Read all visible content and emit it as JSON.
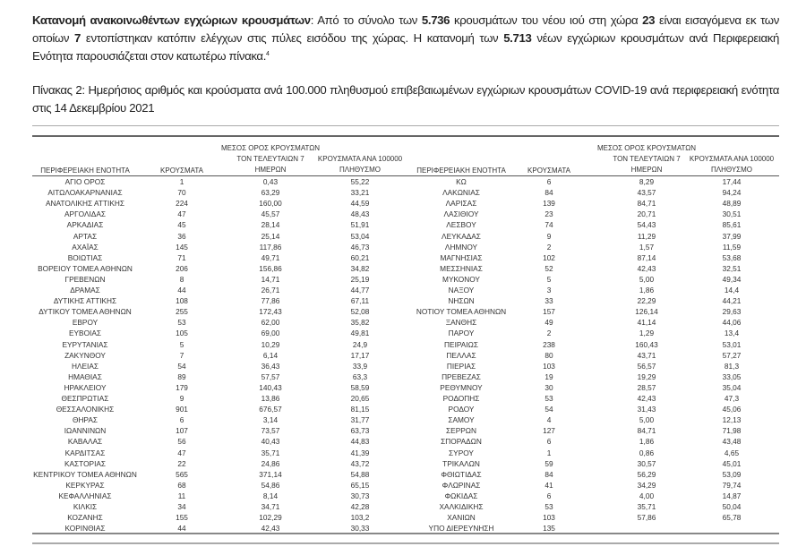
{
  "intro": {
    "bold_lead": "Κατανομή ανακοινωθέντων εγχώριων κρουσμάτων",
    "t1": ": Από το σύνολο των ",
    "total": "5.736",
    "t2": " κρουσμάτων του νέου ιού στη χώρα ",
    "imported": "23",
    "t3": " είναι εισαγόμενα εκ των οποίων ",
    "at_gates": "7",
    "t4": " εντοπίστηκαν κατόπιν ελέγχων στις πύλες εισόδου της χώρας. Η κατανομή των ",
    "domestic": "5.713",
    "t5": " νέων εγχώριων κρουσμάτων ανά Περιφερειακή Ενότητα παρουσιάζεται στον κατωτέρω πίνακα.",
    "footnote": "4"
  },
  "caption": "Πίνακας 2:  Ημερήσιος αριθμός και κρούσματα ανά 100.000 πληθυσμού επιβεβαιωμένων εγχώριων κρουσμάτων COVID-19 ανά περιφερειακή ενότητα στις 14 Δεκεμβρίου 2021",
  "table": {
    "headers": {
      "region": "ΠΕΡΙΦΕΡΕΙΑΚΗ ΕΝΟΤΗΤΑ",
      "cases": "ΚΡΟΥΣΜΑΤΑ",
      "mean_l1": "ΜΕΣΟΣ ΟΡΟΣ ΚΡΟΥΣΜΑΤΩΝ",
      "mean_l2": "ΤΟΝ ΤΕΛΕΥΤΑΙΩΝ 7",
      "mean_l3": "ΗΜΕΡΩΝ",
      "per100k_l1": "ΚΡΟΥΣΜΑΤΑ ΑΝΑ 100000",
      "per100k_l2": "ΠΛΗΘΥΣΜΟ"
    },
    "left": [
      [
        "ΑΓΙΟ ΟΡΟΣ",
        "1",
        "0,43",
        "55,22"
      ],
      [
        "ΑΙΤΩΛΟΑΚΑΡΝΑΝΙΑΣ",
        "70",
        "63,29",
        "33,21"
      ],
      [
        "ΑΝΑΤΟΛΙΚΗΣ ΑΤΤΙΚΗΣ",
        "224",
        "160,00",
        "44,59"
      ],
      [
        "ΑΡΓΟΛΙΔΑΣ",
        "47",
        "45,57",
        "48,43"
      ],
      [
        "ΑΡΚΑΔΙΑΣ",
        "45",
        "28,14",
        "51,91"
      ],
      [
        "ΑΡΤΑΣ",
        "36",
        "25,14",
        "53,04"
      ],
      [
        "ΑΧΑΪΑΣ",
        "145",
        "117,86",
        "46,73"
      ],
      [
        "ΒΟΙΩΤΙΑΣ",
        "71",
        "49,71",
        "60,21"
      ],
      [
        "ΒΟΡΕΙΟΥ ΤΟΜΕΑ ΑΘΗΝΩΝ",
        "206",
        "156,86",
        "34,82"
      ],
      [
        "ΓΡΕΒΕΝΩΝ",
        "8",
        "14,71",
        "25,19"
      ],
      [
        "ΔΡΑΜΑΣ",
        "44",
        "26,71",
        "44,77"
      ],
      [
        "ΔΥΤΙΚΗΣ ΑΤΤΙΚΗΣ",
        "108",
        "77,86",
        "67,11"
      ],
      [
        "ΔΥΤΙΚΟΥ ΤΟΜΕΑ ΑΘΗΝΩΝ",
        "255",
        "172,43",
        "52,08"
      ],
      [
        "ΕΒΡΟΥ",
        "53",
        "62,00",
        "35,82"
      ],
      [
        "ΕΥΒΟΙΑΣ",
        "105",
        "69,00",
        "49,81"
      ],
      [
        "ΕΥΡΥΤΑΝΙΑΣ",
        "5",
        "10,29",
        "24,9"
      ],
      [
        "ΖΑΚΥΝΘΟΥ",
        "7",
        "6,14",
        "17,17"
      ],
      [
        "ΗΛΕΙΑΣ",
        "54",
        "36,43",
        "33,9"
      ],
      [
        "ΗΜΑΘΙΑΣ",
        "89",
        "57,57",
        "63,3"
      ],
      [
        "ΗΡΑΚΛΕΙΟΥ",
        "179",
        "140,43",
        "58,59"
      ],
      [
        "ΘΕΣΠΡΩΤΙΑΣ",
        "9",
        "13,86",
        "20,65"
      ],
      [
        "ΘΕΣΣΑΛΟΝΙΚΗΣ",
        "901",
        "676,57",
        "81,15"
      ],
      [
        "ΘΗΡΑΣ",
        "6",
        "3,14",
        "31,77"
      ],
      [
        "ΙΩΑΝΝΙΝΩΝ",
        "107",
        "73,57",
        "63,73"
      ],
      [
        "ΚΑΒΑΛΑΣ",
        "56",
        "40,43",
        "44,83"
      ],
      [
        "ΚΑΡΔΙΤΣΑΣ",
        "47",
        "35,71",
        "41,39"
      ],
      [
        "ΚΑΣΤΟΡΙΑΣ",
        "22",
        "24,86",
        "43,72"
      ],
      [
        "ΚΕΝΤΡΙΚΟΥ ΤΟΜΕΑ ΑΘΗΝΩΝ",
        "565",
        "371,14",
        "54,88"
      ],
      [
        "ΚΕΡΚΥΡΑΣ",
        "68",
        "54,86",
        "65,15"
      ],
      [
        "ΚΕΦΑΛΛΗΝΙΑΣ",
        "11",
        "8,14",
        "30,73"
      ],
      [
        "ΚΙΛΚΙΣ",
        "34",
        "34,71",
        "42,28"
      ],
      [
        "ΚΟΖΑΝΗΣ",
        "155",
        "102,29",
        "103,2"
      ],
      [
        "ΚΟΡΙΝΘΙΑΣ",
        "44",
        "42,43",
        "30,33"
      ]
    ],
    "right": [
      [
        "ΚΩ",
        "6",
        "8,29",
        "17,44"
      ],
      [
        "ΛΑΚΩΝΙΑΣ",
        "84",
        "43,57",
        "94,24"
      ],
      [
        "ΛΑΡΙΣΑΣ",
        "139",
        "84,71",
        "48,89"
      ],
      [
        "ΛΑΣΙΘΙΟΥ",
        "23",
        "20,71",
        "30,51"
      ],
      [
        "ΛΕΣΒΟΥ",
        "74",
        "54,43",
        "85,61"
      ],
      [
        "ΛΕΥΚΑΔΑΣ",
        "9",
        "11,29",
        "37,99"
      ],
      [
        "ΛΗΜΝΟΥ",
        "2",
        "1,57",
        "11,59"
      ],
      [
        "ΜΑΓΝΗΣΙΑΣ",
        "102",
        "87,14",
        "53,68"
      ],
      [
        "ΜΕΣΣΗΝΙΑΣ",
        "52",
        "42,43",
        "32,51"
      ],
      [
        "ΜΥΚΟΝΟΥ",
        "5",
        "5,00",
        "49,34"
      ],
      [
        "ΝΑΞΟΥ",
        "3",
        "1,86",
        "14,4"
      ],
      [
        "ΝΗΣΩΝ",
        "33",
        "22,29",
        "44,21"
      ],
      [
        "ΝΟΤΙΟΥ ΤΟΜΕΑ ΑΘΗΝΩΝ",
        "157",
        "126,14",
        "29,63"
      ],
      [
        "ΞΑΝΘΗΣ",
        "49",
        "41,14",
        "44,06"
      ],
      [
        "ΠΑΡΟΥ",
        "2",
        "1,29",
        "13,4"
      ],
      [
        "ΠΕΙΡΑΙΩΣ",
        "238",
        "160,43",
        "53,01"
      ],
      [
        "ΠΕΛΛΑΣ",
        "80",
        "43,71",
        "57,27"
      ],
      [
        "ΠΙΕΡΙΑΣ",
        "103",
        "56,57",
        "81,3"
      ],
      [
        "ΠΡΕΒΕΖΑΣ",
        "19",
        "19,29",
        "33,05"
      ],
      [
        "ΡΕΘΥΜΝΟΥ",
        "30",
        "28,57",
        "35,04"
      ],
      [
        "ΡΟΔΟΠΗΣ",
        "53",
        "42,43",
        "47,3"
      ],
      [
        "ΡΟΔΟΥ",
        "54",
        "31,43",
        "45,06"
      ],
      [
        "ΣΑΜΟΥ",
        "4",
        "5,00",
        "12,13"
      ],
      [
        "ΣΕΡΡΩΝ",
        "127",
        "84,71",
        "71,98"
      ],
      [
        "ΣΠΟΡΑΔΩΝ",
        "6",
        "1,86",
        "43,48"
      ],
      [
        "ΣΥΡΟΥ",
        "1",
        "0,86",
        "4,65"
      ],
      [
        "ΤΡΙΚΑΛΩΝ",
        "59",
        "30,57",
        "45,01"
      ],
      [
        "ΦΘΙΩΤΙΔΑΣ",
        "84",
        "56,29",
        "53,09"
      ],
      [
        "ΦΛΩΡΙΝΑΣ",
        "41",
        "34,29",
        "79,74"
      ],
      [
        "ΦΩΚΙΔΑΣ",
        "6",
        "4,00",
        "14,87"
      ],
      [
        "ΧΑΛΚΙΔΙΚΗΣ",
        "53",
        "35,71",
        "50,04"
      ],
      [
        "ΧΑΝΙΩΝ",
        "103",
        "57,86",
        "65,78"
      ],
      [
        "ΥΠΟ ΔΙΕΡΕΥΝΗΣΗ",
        "135",
        "",
        ""
      ]
    ]
  }
}
